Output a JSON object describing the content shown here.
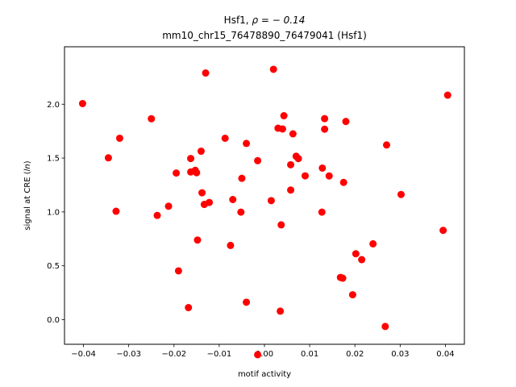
{
  "chart_data": {
    "type": "scatter",
    "title_prefix": "Hsf1, ",
    "title_rho": "ρ = − 0.14",
    "subtitle": "mm10_chr15_76478890_76479041 (Hsf1)",
    "xlabel": "motif activity",
    "ylabel_prefix": "signal at CRE (",
    "ylabel_italic": "ln",
    "ylabel_suffix": ")",
    "xlim": [
      -0.0442,
      0.0442
    ],
    "ylim": [
      -0.2285,
      2.5333
    ],
    "xticks": [
      -0.04,
      -0.03,
      -0.02,
      -0.01,
      0.0,
      0.01,
      0.02,
      0.03,
      0.04
    ],
    "xtick_labels": [
      "−0.04",
      "−0.03",
      "−0.02",
      "−0.01",
      "0.00",
      "0.01",
      "0.02",
      "0.03",
      "0.04"
    ],
    "yticks": [
      0.0,
      0.5,
      1.0,
      1.5,
      2.0
    ],
    "ytick_labels": [
      "0.0",
      "0.5",
      "1.0",
      "1.5",
      "2.0"
    ],
    "marker_color": "#ff0000",
    "grid": false,
    "points": [
      {
        "x": -0.0402,
        "y": 2.006
      },
      {
        "x": -0.0345,
        "y": 1.502
      },
      {
        "x": -0.032,
        "y": 1.684
      },
      {
        "x": -0.0328,
        "y": 1.006
      },
      {
        "x": -0.025,
        "y": 1.865
      },
      {
        "x": -0.0237,
        "y": 0.968
      },
      {
        "x": -0.0212,
        "y": 1.053
      },
      {
        "x": -0.0195,
        "y": 1.361
      },
      {
        "x": -0.019,
        "y": 0.453
      },
      {
        "x": -0.0168,
        "y": 0.112
      },
      {
        "x": -0.0163,
        "y": 1.496
      },
      {
        "x": -0.0163,
        "y": 1.371
      },
      {
        "x": -0.0153,
        "y": 1.386
      },
      {
        "x": -0.015,
        "y": 1.364
      },
      {
        "x": -0.0148,
        "y": 0.739
      },
      {
        "x": -0.014,
        "y": 1.564
      },
      {
        "x": -0.0138,
        "y": 1.178
      },
      {
        "x": -0.0133,
        "y": 1.07
      },
      {
        "x": -0.013,
        "y": 2.29
      },
      {
        "x": -0.0122,
        "y": 1.088
      },
      {
        "x": -0.0087,
        "y": 1.684
      },
      {
        "x": -0.0075,
        "y": 0.689
      },
      {
        "x": -0.007,
        "y": 1.115
      },
      {
        "x": -0.0052,
        "y": 0.998
      },
      {
        "x": -0.005,
        "y": 1.312
      },
      {
        "x": -0.004,
        "y": 1.636
      },
      {
        "x": -0.004,
        "y": 0.162
      },
      {
        "x": -0.0015,
        "y": 1.476
      },
      {
        "x": -0.0015,
        "y": -0.325
      },
      {
        "x": 0.0015,
        "y": 1.105
      },
      {
        "x": 0.002,
        "y": 2.324
      },
      {
        "x": 0.003,
        "y": 1.777
      },
      {
        "x": 0.0035,
        "y": 0.079
      },
      {
        "x": 0.0037,
        "y": 0.88
      },
      {
        "x": 0.004,
        "y": 1.77
      },
      {
        "x": 0.0043,
        "y": 1.893
      },
      {
        "x": 0.0058,
        "y": 1.438
      },
      {
        "x": 0.0058,
        "y": 1.203
      },
      {
        "x": 0.0063,
        "y": 1.725
      },
      {
        "x": 0.007,
        "y": 1.517
      },
      {
        "x": 0.0075,
        "y": 1.495
      },
      {
        "x": 0.009,
        "y": 1.335
      },
      {
        "x": 0.0127,
        "y": 0.998
      },
      {
        "x": 0.0128,
        "y": 1.407
      },
      {
        "x": 0.0133,
        "y": 1.866
      },
      {
        "x": 0.0133,
        "y": 1.768
      },
      {
        "x": 0.0143,
        "y": 1.334
      },
      {
        "x": 0.0168,
        "y": 0.392
      },
      {
        "x": 0.0173,
        "y": 0.385
      },
      {
        "x": 0.0175,
        "y": 1.274
      },
      {
        "x": 0.018,
        "y": 1.84
      },
      {
        "x": 0.0195,
        "y": 0.231
      },
      {
        "x": 0.0202,
        "y": 0.612
      },
      {
        "x": 0.0215,
        "y": 0.557
      },
      {
        "x": 0.024,
        "y": 0.704
      },
      {
        "x": 0.0267,
        "y": -0.063
      },
      {
        "x": 0.027,
        "y": 1.622
      },
      {
        "x": 0.0302,
        "y": 1.162
      },
      {
        "x": 0.0395,
        "y": 0.829
      },
      {
        "x": 0.0405,
        "y": 2.084
      }
    ]
  }
}
